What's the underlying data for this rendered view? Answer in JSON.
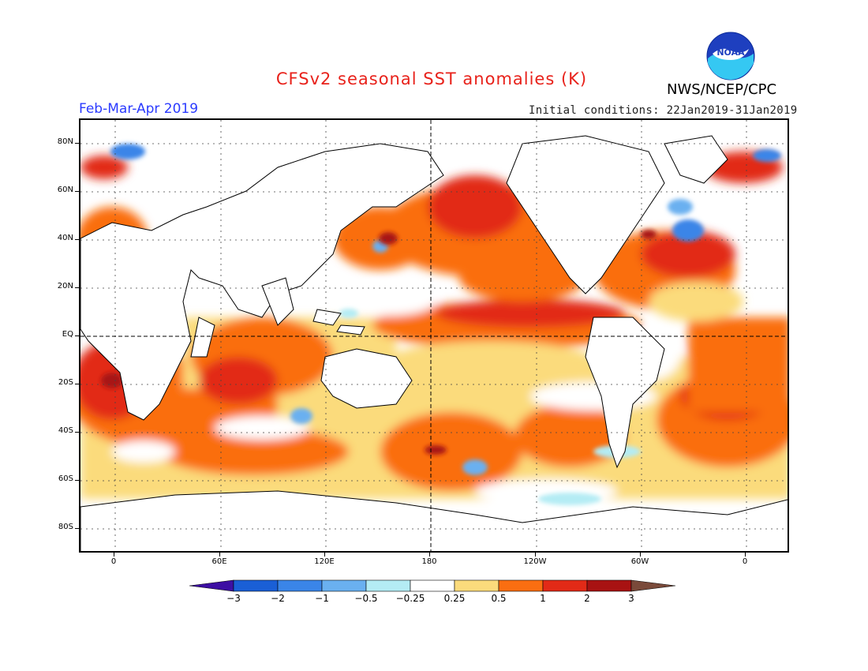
{
  "header": {
    "title": "CFSv2 seasonal SST anomalies (K)",
    "agency": "NWS/NCEP/CPC",
    "period": "Feb-Mar-Apr 2019",
    "initial_conditions": "Initial conditions: 22Jan2019-31Jan2019"
  },
  "logo": {
    "text": "NOAA"
  },
  "map": {
    "lat_labels": [
      "80N",
      "60N",
      "40N",
      "20N",
      "EQ",
      "20S",
      "40S",
      "60S",
      "80S"
    ],
    "lon_labels": [
      "0",
      "60E",
      "120E",
      "180",
      "120W",
      "60W",
      "0"
    ]
  },
  "colorbar": {
    "labels": [
      "-3",
      "-2",
      "-1",
      "-0.5",
      "-0.25",
      "0.25",
      "0.5",
      "1",
      "2",
      "3"
    ],
    "colors": [
      "#3d0fa3",
      "#1a5fd6",
      "#3a85e8",
      "#6ab0f0",
      "#b4ecf4",
      "#ffffff",
      "#fbdb7c",
      "#fa6e11",
      "#e22a17",
      "#a81212",
      "#7a4a3a"
    ]
  }
}
